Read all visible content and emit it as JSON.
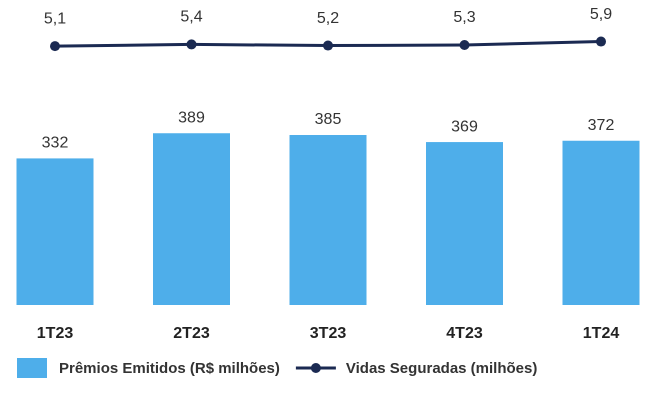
{
  "chart_data": {
    "type": "bar-line",
    "categories": [
      "1T23",
      "2T23",
      "3T23",
      "4T23",
      "1T24"
    ],
    "series": [
      {
        "name": "Prêmios Emitidos (R$ milhões)",
        "color": "#4eaeea",
        "type": "bar",
        "values": [
          332,
          389,
          385,
          369,
          372
        ]
      },
      {
        "name": "Vidas Seguradas (milhões)",
        "color": "#1b2a52",
        "type": "line",
        "axis": "y2",
        "values": [
          5.1,
          5.4,
          5.2,
          5.3,
          5.9
        ],
        "value_labels": [
          "5,1",
          "5,4",
          "5,2",
          "5,3",
          "5,9"
        ]
      }
    ],
    "ylim": [
      0,
      650
    ],
    "y2lim": [
      -40,
      10
    ],
    "legend": "bottom"
  }
}
